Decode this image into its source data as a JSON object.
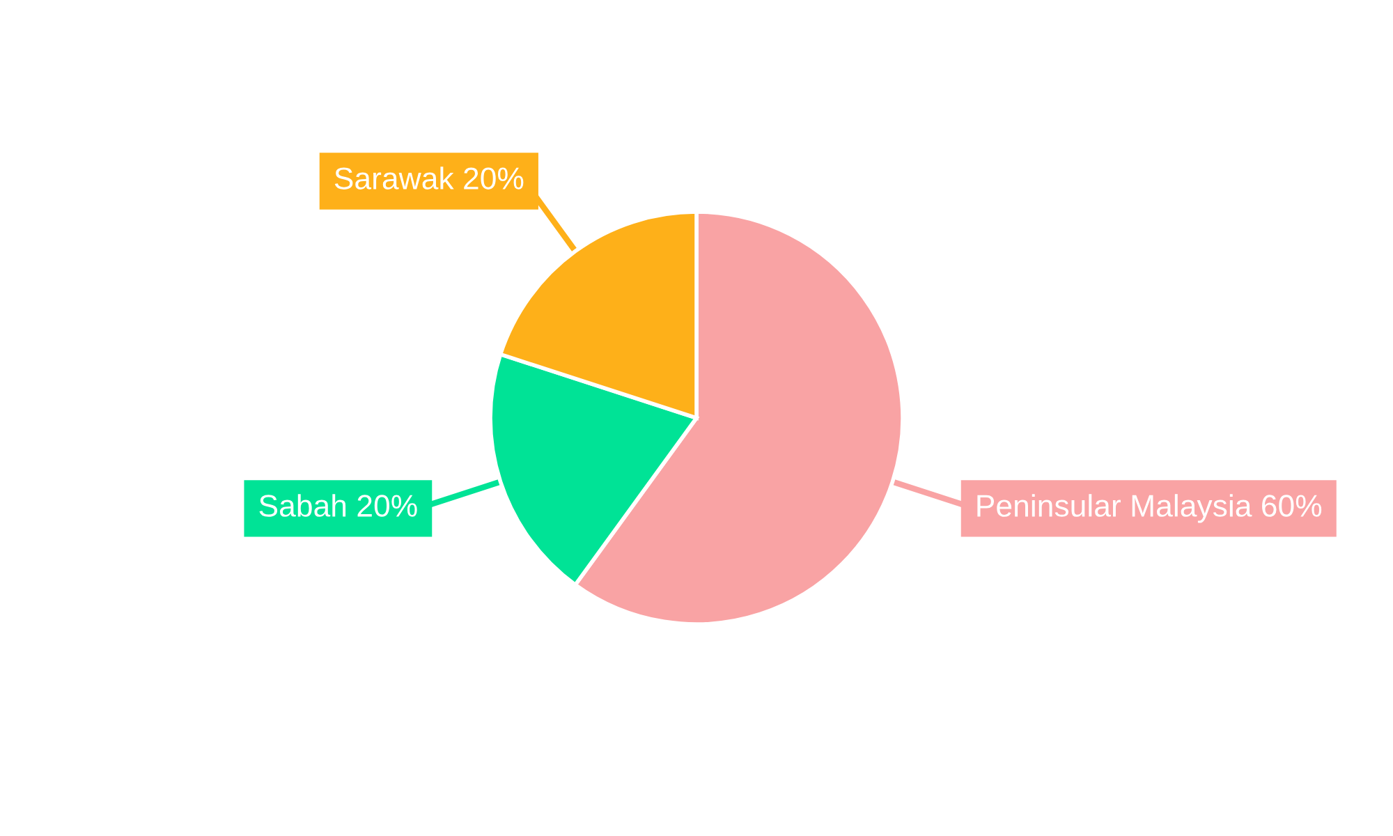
{
  "chart_data": {
    "type": "pie",
    "categories": [
      "Peninsular Malaysia",
      "Sabah",
      "Sarawak"
    ],
    "values": [
      60,
      20,
      20
    ],
    "value_labels": [
      "60%",
      "20%",
      "20%"
    ],
    "colors": [
      "#f9a3a4",
      "#00e396",
      "#feb019"
    ],
    "legend": false
  }
}
